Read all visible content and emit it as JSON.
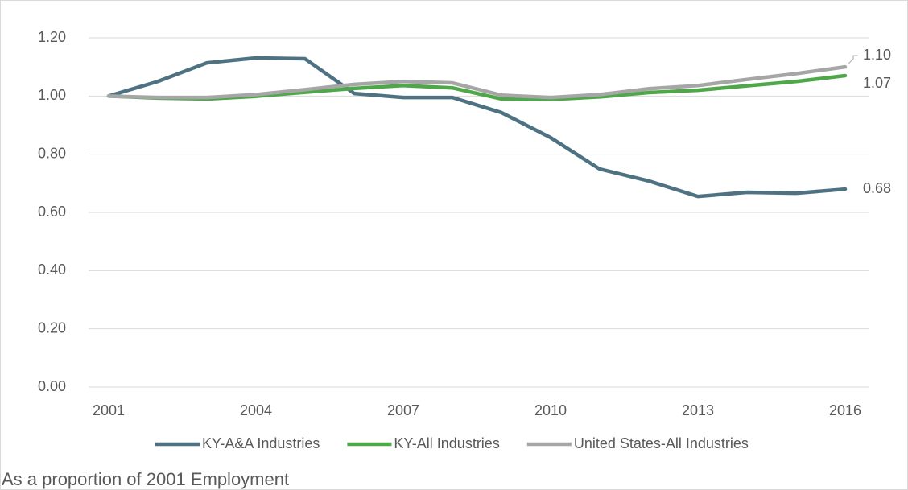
{
  "chart_data": {
    "type": "line",
    "annotation": "As a proportion of 2001 Employment",
    "x": [
      2001,
      2002,
      2003,
      2004,
      2005,
      2006,
      2007,
      2008,
      2009,
      2010,
      2011,
      2012,
      2013,
      2014,
      2015,
      2016
    ],
    "series": [
      {
        "name": "KY-A&A Industries",
        "color": "#4e7282",
        "values": [
          1.0,
          1.05,
          1.114,
          1.131,
          1.128,
          1.009,
          0.995,
          0.995,
          0.943,
          0.857,
          0.749,
          0.708,
          0.655,
          0.669,
          0.666,
          0.68
        ],
        "value_labels": [
          null,
          null,
          null,
          null,
          null,
          null,
          null,
          null,
          null,
          null,
          null,
          null,
          null,
          null,
          null,
          "0.68"
        ]
      },
      {
        "name": "KY-All Industries",
        "color": "#4ea84a",
        "values": [
          1.0,
          0.993,
          0.99,
          0.999,
          1.013,
          1.026,
          1.036,
          1.028,
          0.99,
          0.988,
          0.997,
          1.012,
          1.02,
          1.035,
          1.05,
          1.07
        ],
        "value_labels": [
          null,
          null,
          null,
          null,
          null,
          null,
          null,
          null,
          null,
          null,
          null,
          null,
          null,
          null,
          null,
          "1.07"
        ]
      },
      {
        "name": "United States-All Industries",
        "color": "#a6a6a6",
        "values": [
          1.0,
          0.995,
          0.995,
          1.005,
          1.022,
          1.04,
          1.05,
          1.045,
          1.003,
          0.995,
          1.005,
          1.025,
          1.036,
          1.057,
          1.077,
          1.1
        ],
        "value_labels": [
          null,
          null,
          null,
          null,
          null,
          null,
          null,
          null,
          null,
          null,
          null,
          null,
          null,
          null,
          null,
          "1.10"
        ]
      }
    ],
    "xlim": [
      2001,
      2016
    ],
    "xticks": [
      2001,
      2004,
      2007,
      2010,
      2013,
      2016
    ],
    "ylim": [
      0,
      1.2
    ],
    "yticks": [
      {
        "value": 0,
        "label": "0.00"
      },
      {
        "value": 0.2,
        "label": "0.20"
      },
      {
        "value": 0.4,
        "label": "0.40"
      },
      {
        "value": 0.6,
        "label": "0.60"
      },
      {
        "value": 0.8,
        "label": "0.80"
      },
      {
        "value": 1.0,
        "label": "1.00"
      },
      {
        "value": 1.2,
        "label": "1.20"
      }
    ],
    "grid": true,
    "legend": "bottom"
  }
}
